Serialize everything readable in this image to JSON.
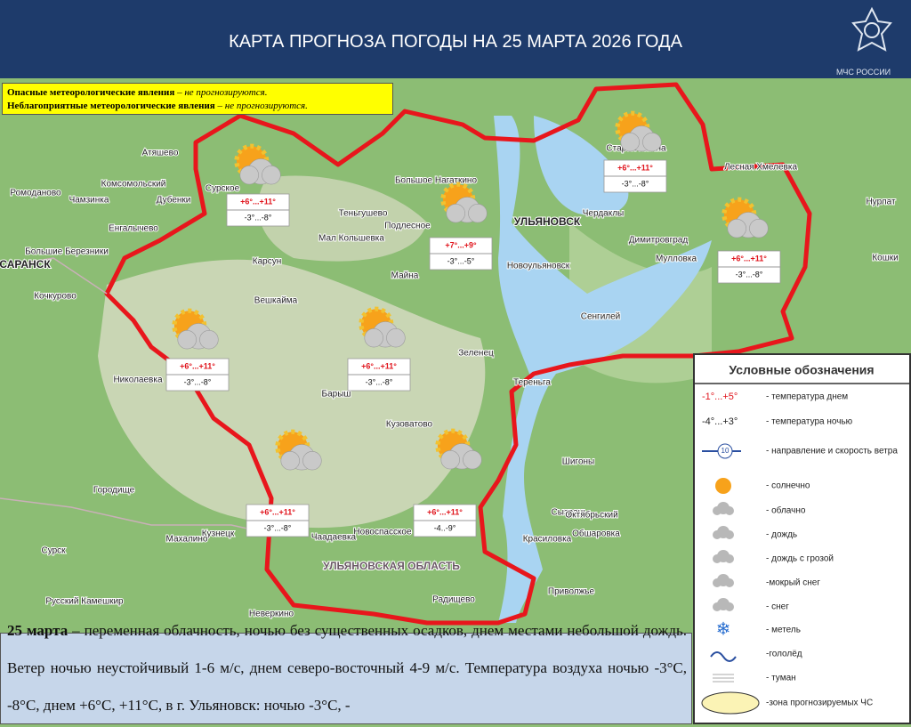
{
  "header": {
    "title": "КАРТА ПРОГНОЗА ПОГОДЫ НА 25 МАРТА 2026 ГОДА",
    "logo": "МЧС РОССИИ"
  },
  "warnings": [
    {
      "label": "Опасные метеорологические явления",
      "status": " – не прогнозируются."
    },
    {
      "label": "Неблагоприятные метеорологические явления",
      "status": " – не прогнозируются."
    }
  ],
  "forecasts": [
    {
      "day": "+6°...+11°",
      "night": "-3°...-8°"
    },
    {
      "day": "+7°...+9°",
      "night": "-3°...-5°"
    },
    {
      "day": "+6°...+11°",
      "night": "-3°...-8°"
    },
    {
      "day": "+6°...+11°",
      "night": "-3°...-8°"
    },
    {
      "day": "+6°...+11°",
      "night": "-3°...-8°"
    },
    {
      "day": "+6°...+11°",
      "night": "-3°...-8°"
    },
    {
      "day": "+6°...+11°",
      "night": "-3°...-8°"
    },
    {
      "day": "+6°...+11°",
      "night": "-4..-9°"
    }
  ],
  "map_labels": [
    "Атяшево",
    "Комсомольский",
    "Чамзинка",
    "Дубенки",
    "Ромоданово",
    "Енгалычево",
    "Большие Березники",
    "САРАНСК",
    "Кочкурово",
    "Сурское",
    "Карсун",
    "Вешкайма",
    "Мал Кольшевка",
    "Теньгушево",
    "Большое Нагаткино",
    "Подлесное",
    "Майна",
    "УЛЬЯНОВСК",
    "Новоульяновск",
    "Чердаклы",
    "Старая Майна",
    "Димитровград",
    "Мулловка",
    "Лесная Хмелевка",
    "Нурлат",
    "Кошки",
    "Сенгилей",
    "Зеленец",
    "Тереньга",
    "Барыш",
    "Кузоватово",
    "Николаевка",
    "Новоспасское",
    "Городище",
    "Сурск",
    "Русский Камешкир",
    "Неверкино",
    "Кузнецк",
    "Чаадаевка",
    "Махалино",
    "Сызрань",
    "Октябрьский",
    "Обшаровка",
    "Красиловка",
    "Приволжье",
    "Радищево",
    "Шигоны",
    "УЛЬЯНОВСКАЯ ОБЛАСТЬ"
  ],
  "legend": {
    "title": "Условные обозначения",
    "items": [
      {
        "sample": "-1°...+5°",
        "label": "- температура днем"
      },
      {
        "sample": "-4°...+3°",
        "label": "- температура ночью"
      },
      {
        "sample": "10",
        "label": "- направление и  скорость ветра"
      },
      {
        "label": "- солнечно"
      },
      {
        "label": "- облачно"
      },
      {
        "label": "- дождь"
      },
      {
        "label": "- дождь с грозой"
      },
      {
        "label": "-мокрый снег"
      },
      {
        "label": "- снег"
      },
      {
        "label": "- метель"
      },
      {
        "label": "-гололёд"
      },
      {
        "label": "- туман"
      },
      {
        "label": "-зона прогнозируемых ЧС"
      }
    ]
  },
  "summary": {
    "date": "25 марта",
    "text": " – переменная облачность, ночью без существенных осадков,  днем местами небольшой дождь.  Ветер ночью неустойчивый 1-6 м/с, днем северо-восточный 4-9 м/с. Температура воздуха ночью -3°С, -8°С, днем +6°С, +11°С, в г. Ульяновск: ночью -3°С, -"
  }
}
